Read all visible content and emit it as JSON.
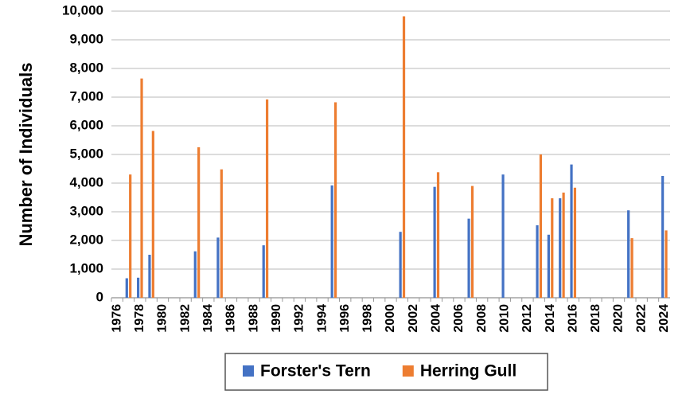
{
  "chart_data": {
    "type": "bar",
    "y_label": "Number of Individuals",
    "categories": [
      "1976",
      null,
      "1978",
      null,
      "1980",
      null,
      "1982",
      null,
      "1984",
      null,
      "1986",
      null,
      "1988",
      null,
      "1990",
      null,
      "1992",
      null,
      "1994",
      null,
      "1996",
      null,
      "1998",
      null,
      "2000",
      null,
      "2002",
      null,
      "2004",
      null,
      "2006",
      null,
      "2008",
      null,
      "2010",
      null,
      "2012",
      null,
      "2014",
      null,
      "2016",
      null,
      "2018",
      null,
      "2020",
      null,
      "2022",
      null,
      "2024"
    ],
    "series": [
      {
        "name": "Forster's Tern",
        "color": "#4472c4",
        "values": [
          null,
          680,
          700,
          1500,
          null,
          null,
          null,
          1620,
          null,
          2100,
          null,
          null,
          null,
          1830,
          null,
          null,
          null,
          null,
          null,
          3920,
          null,
          null,
          null,
          null,
          null,
          2300,
          null,
          null,
          3870,
          null,
          null,
          2760,
          null,
          null,
          4300,
          null,
          null,
          2530,
          2200,
          3470,
          4650,
          null,
          null,
          null,
          null,
          3050,
          null,
          null,
          4250
        ]
      },
      {
        "name": "Herring Gull",
        "color": "#ed7d31",
        "values": [
          null,
          4300,
          7650,
          5820,
          null,
          null,
          null,
          5250,
          null,
          4480,
          null,
          null,
          null,
          6920,
          null,
          null,
          null,
          null,
          null,
          6820,
          null,
          null,
          null,
          null,
          null,
          9820,
          null,
          null,
          4380,
          null,
          null,
          3900,
          null,
          null,
          null,
          null,
          null,
          5000,
          3470,
          3670,
          3840,
          null,
          null,
          null,
          null,
          2080,
          null,
          null,
          2350
        ]
      }
    ],
    "ylim": [
      0,
      10000
    ],
    "yticks": [
      0,
      {
        "value": 1000,
        "label": "1,000"
      },
      {
        "value": 2000,
        "label": "2,000"
      },
      {
        "value": 3000,
        "label": "3,000"
      },
      {
        "value": 4000,
        "label": "4,000"
      },
      {
        "value": 5000,
        "label": "5,000"
      },
      {
        "value": 6000,
        "label": "6,000"
      },
      {
        "value": 7000,
        "label": "7,000"
      },
      {
        "value": 8000,
        "label": "8,000"
      },
      {
        "value": 9000,
        "label": "9,000"
      },
      {
        "value": 10000,
        "label": "10,000"
      }
    ],
    "grid": true,
    "legend": "bottom"
  }
}
